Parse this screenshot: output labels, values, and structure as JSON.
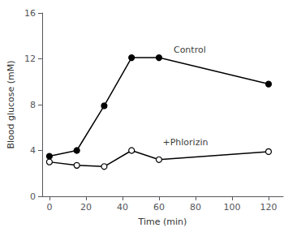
{
  "chart_data": {
    "type": "line",
    "x": [
      0,
      15,
      30,
      45,
      60,
      120
    ],
    "series": [
      {
        "name": "Control",
        "color": "#000000",
        "marker": "filled_circle",
        "values": [
          3.5,
          4.0,
          7.9,
          12.1,
          12.1,
          9.8
        ]
      },
      {
        "name": "+Phlorizin",
        "color": "#000000",
        "marker": "open_circle",
        "values": [
          3.0,
          2.7,
          2.6,
          4.0,
          3.2,
          3.9
        ]
      }
    ],
    "annotations": [
      {
        "text": "Control",
        "x": 68,
        "y": 12.8
      },
      {
        "text": "+Phlorizin",
        "x": 62,
        "y": 4.7
      }
    ],
    "xlabel": "Time (min)",
    "ylabel": "Blood glucose (mM)",
    "xlim": [
      -4,
      128
    ],
    "ylim": [
      0,
      16
    ],
    "xticks": [
      0,
      20,
      40,
      60,
      80,
      100,
      120
    ],
    "yticks": [
      0,
      4,
      8,
      12,
      16
    ],
    "grid": false
  }
}
